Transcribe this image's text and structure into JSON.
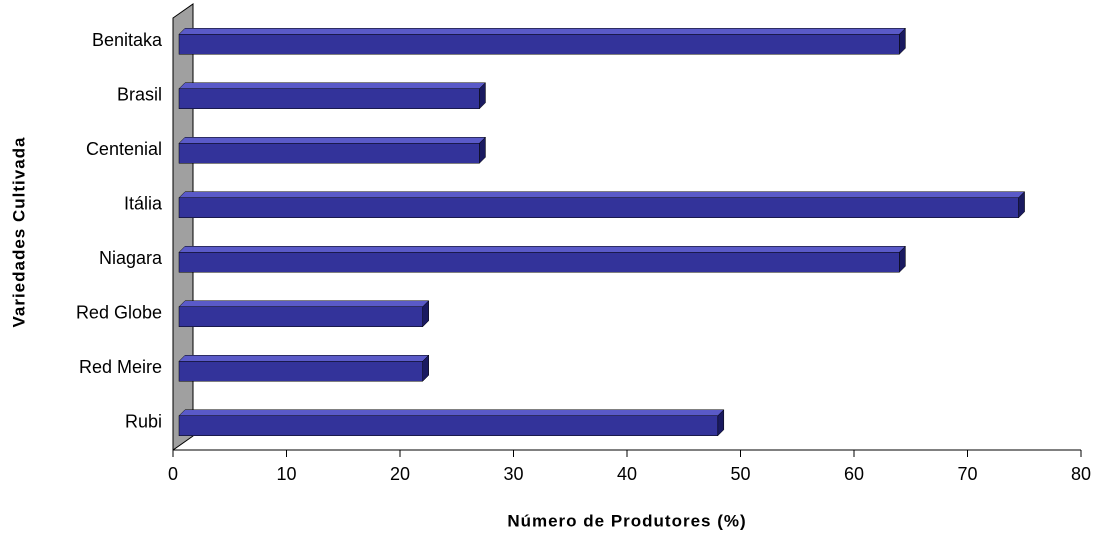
{
  "chart_data": {
    "type": "bar",
    "orientation": "horizontal",
    "xlabel": "Número de Produtores (%)",
    "ylabel": "Variedades Cultivada",
    "categories": [
      "Benitaka",
      "Brasil",
      "Centenial",
      "Itália",
      "Niagara",
      "Red Globe",
      "Red Meire",
      "Rubi"
    ],
    "values": [
      64,
      27,
      27,
      74.5,
      64,
      22,
      22,
      48
    ],
    "color": "#33339a",
    "xlim": [
      0,
      80
    ],
    "xticks": [
      0,
      10,
      20,
      30,
      40,
      50,
      60,
      70,
      80
    ]
  }
}
